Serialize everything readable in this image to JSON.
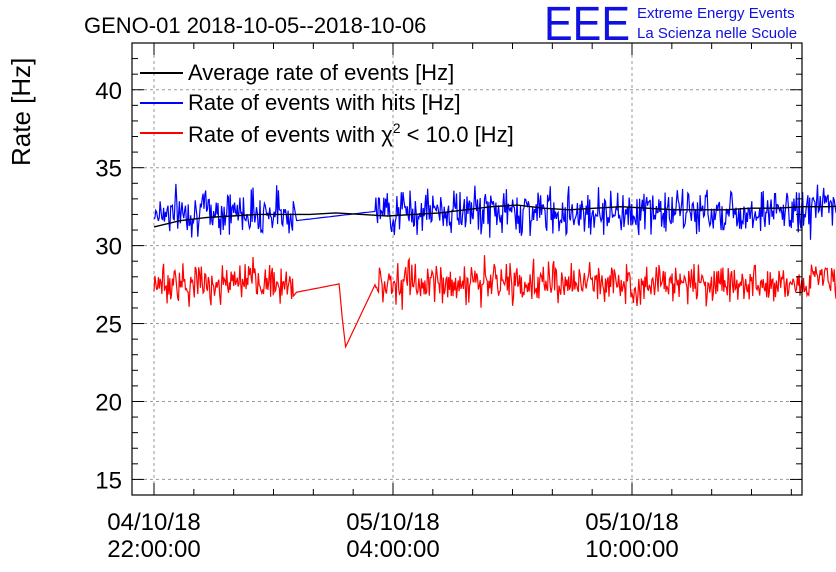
{
  "title": "GENO-01 2018-10-05--2018-10-06",
  "logo": {
    "mark": "EEE",
    "line1": "Extreme Energy Events",
    "line2": "La Scienza nelle Scuole"
  },
  "chart_data": {
    "type": "line",
    "ylabel": "Rate [Hz]",
    "xlabel": "",
    "ylim": [
      14,
      43
    ],
    "xlim_hours": [
      -0.03,
      0.8
    ],
    "yticks": [
      15,
      20,
      25,
      30,
      35,
      40
    ],
    "xticks": [
      {
        "date": "04/10/18",
        "time": "22:00:00"
      },
      {
        "date": "05/10/18",
        "time": "04:00:00"
      },
      {
        "date": "05/10/18",
        "time": "10:00:00"
      }
    ],
    "grid": true,
    "legend_position": "top-left",
    "x_start": "04/10/18 22:00:00",
    "x_end": "05/10/18 16:55:00",
    "series": [
      {
        "name": "Average rate of events [Hz]",
        "color": "#000000",
        "values": [
          31.2,
          31.6,
          31.8,
          31.9,
          32.0,
          32.0,
          32.0,
          32.1,
          32.0,
          31.9,
          32.0,
          32.1,
          32.3,
          32.5,
          32.6,
          32.4,
          32.3,
          32.4,
          32.5,
          32.4,
          32.3,
          32.3,
          32.3,
          32.4,
          32.4,
          32.5,
          32.5,
          32.6,
          32.6,
          32.7
        ]
      },
      {
        "name": "Rate of events with hits [Hz]",
        "color": "#0000ff",
        "mean": 32.2,
        "noise": 1.0,
        "range": [
          29.0,
          34.6
        ]
      },
      {
        "name": "Rate of events with χ2 < 10.0 [Hz]",
        "color": "#ff0000",
        "mean": 27.6,
        "noise": 0.9,
        "range": [
          23.5,
          29.9
        ],
        "dip": {
          "at": "05/10/18 02:40:00",
          "min": 23.5
        }
      }
    ],
    "gap": {
      "from": "05/10/18 01:30:00",
      "to": "05/10/18 03:30:00"
    }
  }
}
